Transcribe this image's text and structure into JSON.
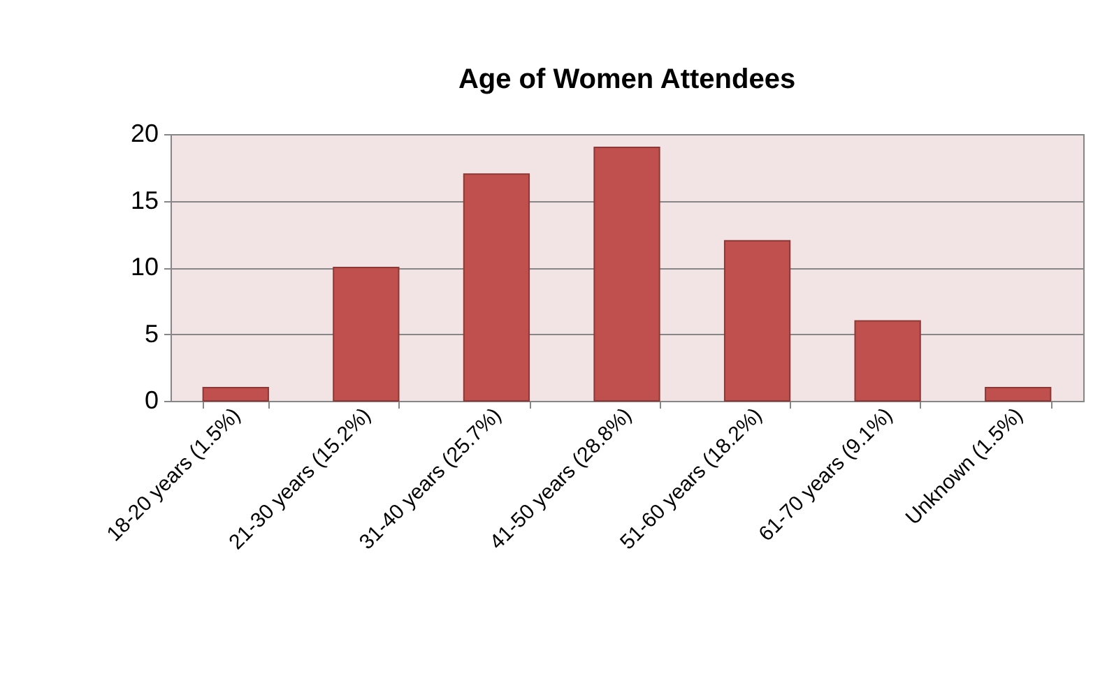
{
  "chart_data": {
    "type": "bar",
    "title": "Age of Women Attendees",
    "categories": [
      "18-20 years (1.5%)",
      "21-30 years (15.2%)",
      "31-40 years (25.7%)",
      "41-50 years (28.8%)",
      "51-60 years (18.2%)",
      "61-70 years (9.1%)",
      "Unknown (1.5%)"
    ],
    "values": [
      1,
      10,
      17,
      19,
      12,
      6,
      1
    ],
    "color": "#c0504d",
    "ylim": [
      0,
      20
    ],
    "yticks": [
      0,
      5,
      10,
      15,
      20
    ],
    "grid": "y"
  }
}
